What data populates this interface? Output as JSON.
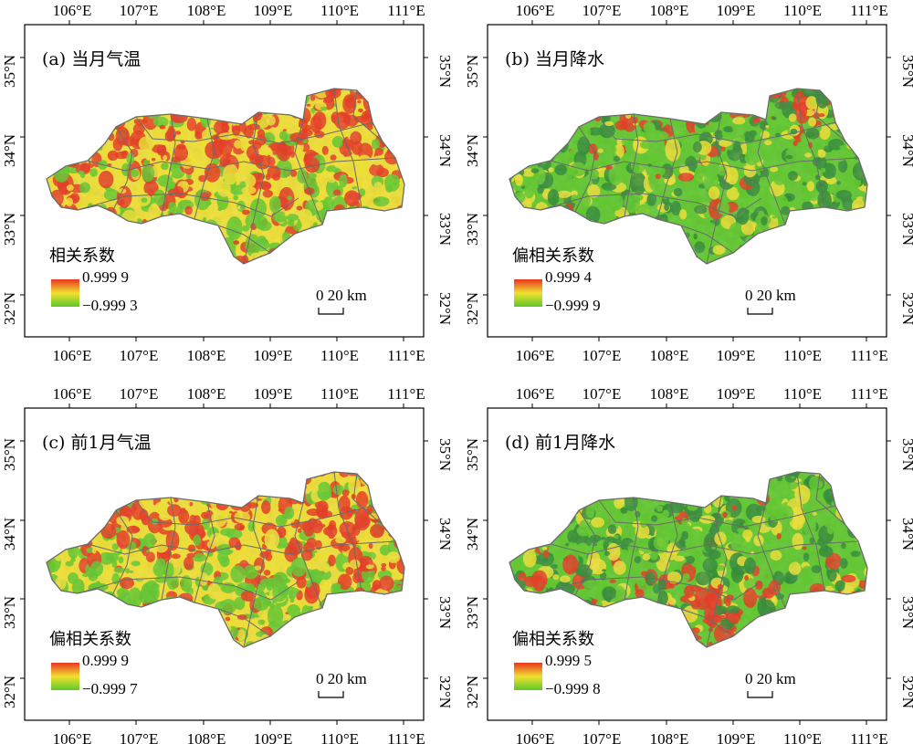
{
  "figure": {
    "panels": [
      {
        "id": "a",
        "title": "(a) 当月气温",
        "legend_title": "相关系数",
        "legend_max": "0.999 9",
        "legend_min": "−0.999 3",
        "scale_label": "0  20 km",
        "hot_band": "wide"
      },
      {
        "id": "b",
        "title": "(b) 当月降水",
        "legend_title": "偏相关系数",
        "legend_max": "0.999 4",
        "legend_min": "−0.999 9",
        "scale_label": "0  20 km",
        "hot_band": "north"
      },
      {
        "id": "c",
        "title": "(c) 前1月气温",
        "legend_title": "偏相关系数",
        "legend_max": "0.999 9",
        "legend_min": "−0.999 7",
        "scale_label": "0  20 km",
        "hot_band": "wide"
      },
      {
        "id": "d",
        "title": "(d) 前1月降水",
        "legend_title": "偏相关系数",
        "legend_max": "0.999 5",
        "legend_min": "−0.999 8",
        "scale_label": "0  20 km",
        "hot_band": "south"
      }
    ],
    "lon_labels": [
      "106°E",
      "107°E",
      "108°E",
      "109°E",
      "110°E",
      "111°E"
    ],
    "lat_labels": [
      "35°N",
      "34°N",
      "33°N",
      "32°N"
    ],
    "colors": {
      "high": "#e8361f",
      "mid": "#f0e030",
      "low": "#5ec82a",
      "dark_green": "#2f8a35",
      "boundary": "#6b6b6b",
      "frame": "#000000"
    }
  }
}
